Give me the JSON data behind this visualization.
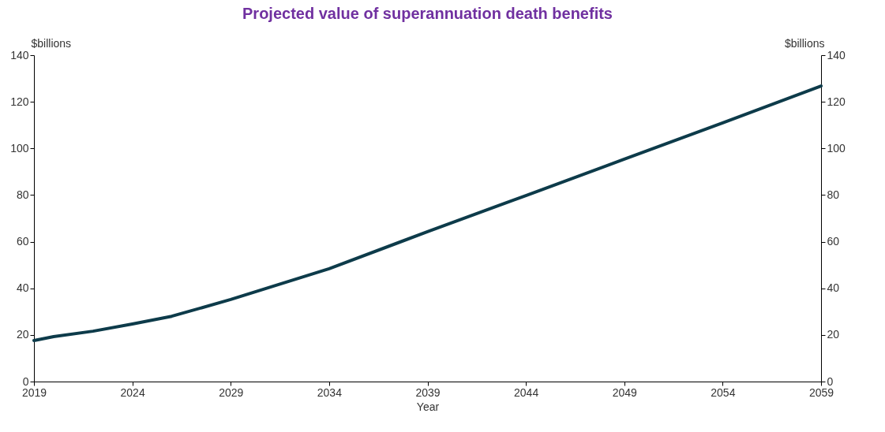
{
  "chart_data": {
    "type": "line",
    "title": "Projected value of superannuation death benefits",
    "xlabel": "Year",
    "ylabel": "$billions",
    "y2label": "$billions",
    "x": [
      2019,
      2020,
      2022,
      2024,
      2026,
      2029,
      2034,
      2039,
      2044,
      2049,
      2054,
      2059
    ],
    "series": [
      {
        "color": "#0d3b4a",
        "values": [
          17.6,
          19.3,
          21.6,
          24.7,
          28,
          35.2,
          48.4,
          64.3,
          79.8,
          95.4,
          111,
          126.8
        ]
      }
    ],
    "xlim": [
      2019,
      2059
    ],
    "xticks": [
      2019,
      2024,
      2029,
      2034,
      2039,
      2044,
      2049,
      2054,
      2059
    ],
    "ylim": [
      0,
      140
    ],
    "yticks": [
      0,
      20,
      40,
      60,
      80,
      100,
      120,
      140
    ],
    "y2lim": [
      0,
      140
    ],
    "y2ticks": [
      0,
      20,
      40,
      60,
      80,
      100,
      120,
      140
    ],
    "grid": false,
    "legend": false,
    "marker": "none",
    "line_style": "solid"
  }
}
